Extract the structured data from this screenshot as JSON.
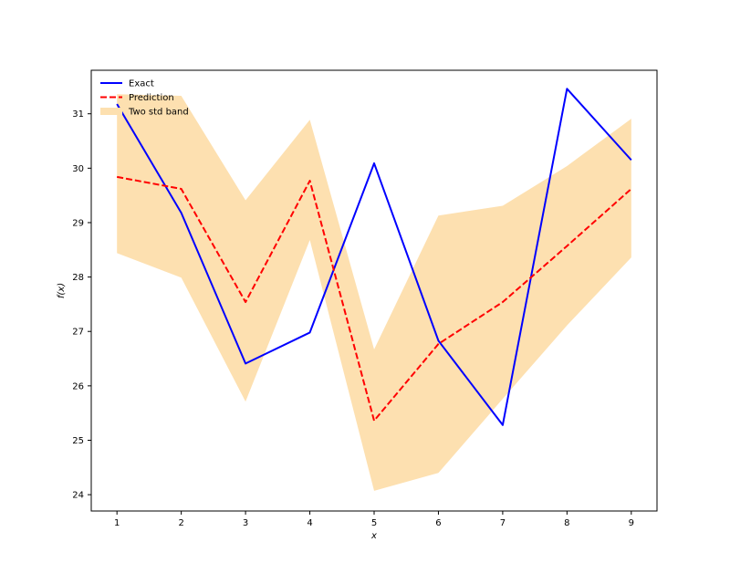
{
  "chart_data": {
    "type": "line",
    "title": "",
    "xlabel": "x",
    "ylabel": "f(x)",
    "x": [
      1,
      2,
      3,
      4,
      5,
      6,
      7,
      8,
      9
    ],
    "xlim": [
      0.6,
      9.4
    ],
    "ylim": [
      23.7,
      31.8
    ],
    "xticks": [
      "1",
      "2",
      "3",
      "4",
      "5",
      "6",
      "7",
      "8",
      "9"
    ],
    "yticks": [
      "24",
      "25",
      "26",
      "27",
      "28",
      "29",
      "30",
      "31"
    ],
    "series": [
      {
        "name": "Exact",
        "style": "solid",
        "color": "#0000ff",
        "values": [
          31.18,
          29.18,
          26.41,
          26.98,
          30.09,
          26.83,
          25.28,
          31.46,
          30.15
        ]
      },
      {
        "name": "Prediction",
        "style": "dashed",
        "color": "#ff0000",
        "values": [
          29.84,
          29.62,
          27.54,
          29.77,
          25.36,
          26.77,
          27.54,
          28.57,
          29.62
        ]
      }
    ],
    "band": {
      "name": "Two std band",
      "color": "#fde0b0",
      "lower": [
        28.44,
        27.99,
        25.71,
        28.68,
        24.07,
        24.4,
        25.76,
        27.11,
        28.36
      ],
      "upper": [
        31.36,
        31.33,
        29.41,
        30.89,
        26.67,
        29.13,
        29.31,
        30.04,
        30.91
      ]
    },
    "legend": "top-left",
    "grid": false
  }
}
